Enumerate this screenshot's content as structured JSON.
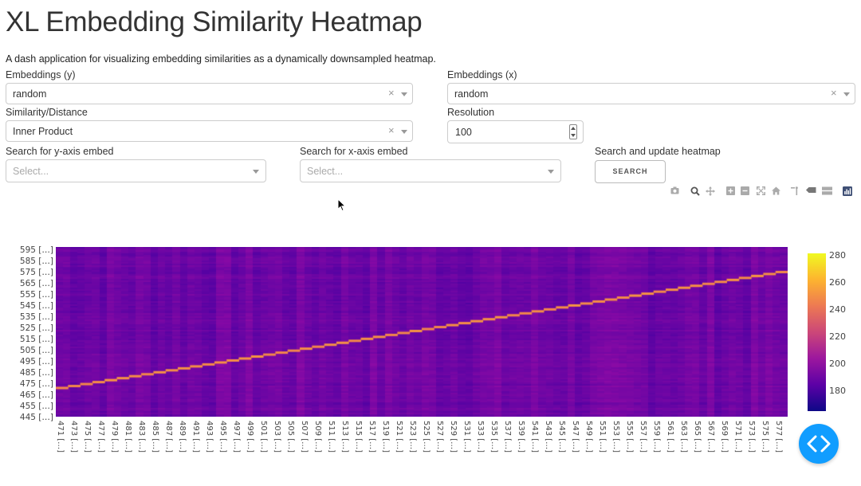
{
  "header": {
    "title": "XL Embedding Similarity Heatmap",
    "description": "A dash application for visualizing embedding similarities as a dynamically downsampled heatmap."
  },
  "controls": {
    "embeddings_y": {
      "label": "Embeddings (y)",
      "value": "random"
    },
    "embeddings_x": {
      "label": "Embeddings (x)",
      "value": "random"
    },
    "similarity": {
      "label": "Similarity/Distance",
      "value": "Inner Product"
    },
    "resolution": {
      "label": "Resolution",
      "value": "100"
    },
    "search_y": {
      "label": "Search for y-axis embed",
      "placeholder": "Select..."
    },
    "search_x": {
      "label": "Search for x-axis embed",
      "placeholder": "Select..."
    },
    "update": {
      "label": "Search and update heatmap",
      "button": "SEARCH"
    }
  },
  "modebar": [
    "camera-icon",
    "zoom-icon",
    "pan-icon",
    "zoom-in-icon",
    "zoom-out-icon",
    "autoscale-icon",
    "home-icon",
    "spike-lines-icon",
    "hover-closest-icon",
    "hover-compare-icon",
    "plotly-logo-icon"
  ],
  "chart_data": {
    "type": "heatmap",
    "y_ticks": [
      "595 […]",
      "585 […]",
      "575 […]",
      "565 […]",
      "555 […]",
      "545 […]",
      "535 […]",
      "525 […]",
      "515 […]",
      "505 […]",
      "495 […]",
      "485 […]",
      "475 […]",
      "465 […]",
      "455 […]",
      "445 […]"
    ],
    "x_ticks": [
      "471 […]",
      "473 […]",
      "475 […]",
      "477 […]",
      "479 […]",
      "481 […]",
      "483 […]",
      "485 […]",
      "487 […]",
      "489 […]",
      "491 […]",
      "493 […]",
      "495 […]",
      "497 […]",
      "499 […]",
      "501 […]",
      "503 […]",
      "505 […]",
      "507 […]",
      "509 […]",
      "511 […]",
      "513 […]",
      "515 […]",
      "517 […]",
      "519 […]",
      "521 […]",
      "523 […]",
      "525 […]",
      "527 […]",
      "529 […]",
      "531 […]",
      "533 […]",
      "535 […]",
      "537 […]",
      "539 […]",
      "541 […]",
      "543 […]",
      "545 […]",
      "547 […]",
      "549 […]",
      "551 […]",
      "553 […]",
      "555 […]",
      "557 […]",
      "559 […]",
      "561 […]",
      "563 […]",
      "565 […]",
      "567 […]",
      "569 […]",
      "571 […]",
      "573 […]",
      "575 […]",
      "577 […]"
    ],
    "colorscale": "plasma",
    "colorbar_ticks": [
      "280",
      "260",
      "240",
      "220",
      "200",
      "180"
    ],
    "colorbar_range": [
      165,
      282
    ],
    "background_value": 190,
    "diagonal_value": 250
  }
}
